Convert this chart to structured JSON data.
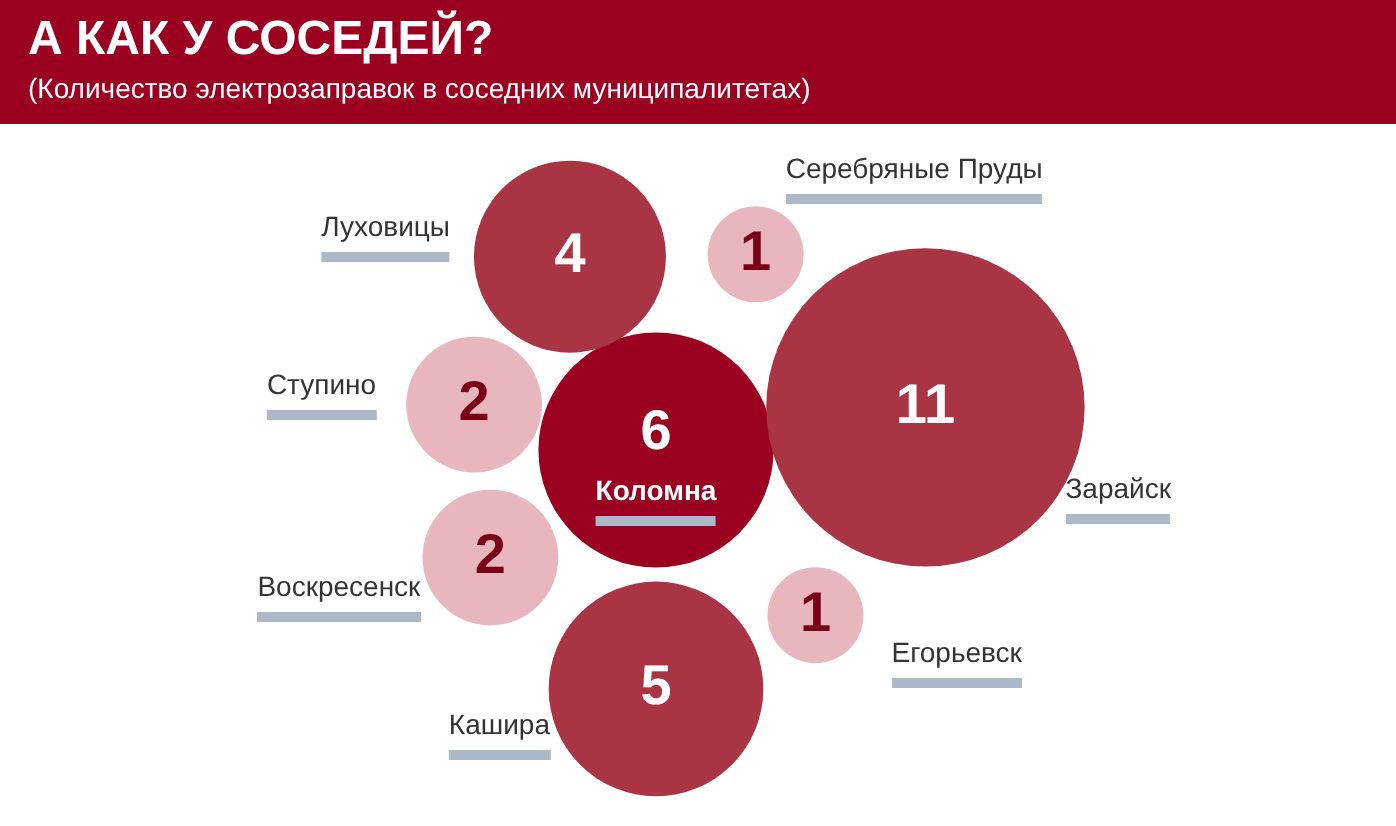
{
  "chart_data": {
    "type": "other",
    "title": "А КАК У СОСЕДЕЙ?",
    "subtitle": "(Количество электрозаправок в соседних муниципалитетах)",
    "categories": [
      "Коломна",
      "Луховицы",
      "Серебряные Пруды",
      "Зарайск",
      "Егорьевск",
      "Кашира",
      "Воскресенск",
      "Ступино"
    ],
    "values": [
      6,
      4,
      1,
      11,
      1,
      5,
      2,
      2
    ],
    "colors": [
      "#9b0020",
      "#a93444",
      "#e8b7be",
      "#a93444",
      "#e8b7be",
      "#a93444",
      "#e8b7be",
      "#e8b7be"
    ],
    "data_labels": true
  }
}
